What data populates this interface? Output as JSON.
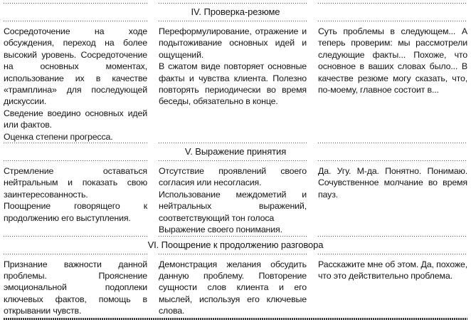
{
  "document": {
    "language": "ru",
    "kind": "book-table-page"
  },
  "colors": {
    "background": "#ffffff",
    "text": "#141414",
    "rule": "#4d4d4d"
  },
  "table": {
    "sections": [
      {
        "title": "IV. Проверка-резюме",
        "cells": [
          {
            "paragraphs": [
              "Сосредоточение на ходе обсуждения, переход на более высокий уровень. Сосредоточение на основных моментах, использование их в качестве «трамплина» для последующей дискуссии.",
              "Сведение воедино основных идей или фактов.",
              "Оценка степени прогресса."
            ]
          },
          {
            "paragraphs": [
              "Переформулирование, отражение и подытоживание основных идей и ощущений.",
              "В сжатом виде повторяет основные факты и чувства клиента. Полезно повторять периодически во время беседы, обязательно в конце."
            ]
          },
          {
            "paragraphs": [
              "Суть проблемы в следующем... А теперь проверим: мы рассмотрели следующие факты... Похоже, что основное в ваших словах было... В качестве резюме могу сказать, что, по-моему, главное состоит в..."
            ]
          }
        ]
      },
      {
        "title": "V. Выражение принятия",
        "cells": [
          {
            "paragraphs": [
              "Стремление оставаться нейтральным и показать свою заинтересованность.",
              "Поощрение говорящего к продолжению его выступления."
            ]
          },
          {
            "paragraphs": [
              "Отсутствие проявлений своего согласия или несогласия.",
              "Использование междометий и нейтральных выражений, соответствующий тон голоса",
              "Выражение своего понимания."
            ]
          },
          {
            "paragraphs": [
              "Да. Угу. М-да. Понятно. Понимаю. Сочувственное молчание во время пауз."
            ]
          }
        ]
      },
      {
        "title": "VI. Поощрение к продолжению разговора",
        "cells": [
          {
            "paragraphs": [
              "Признание важности данной проблемы. Прояснение эмоциональной подоплеки ключевых фактов, помощь в открывании чувств."
            ]
          },
          {
            "paragraphs": [
              "Демонстрация желания обсудить данную проблему. Повторение сущности слов клиента и его мыслей, используя его ключевые слова."
            ]
          },
          {
            "paragraphs": [
              "Расскажите мне об этом. Да, похоже, что это действительно проблема."
            ]
          }
        ]
      }
    ]
  }
}
